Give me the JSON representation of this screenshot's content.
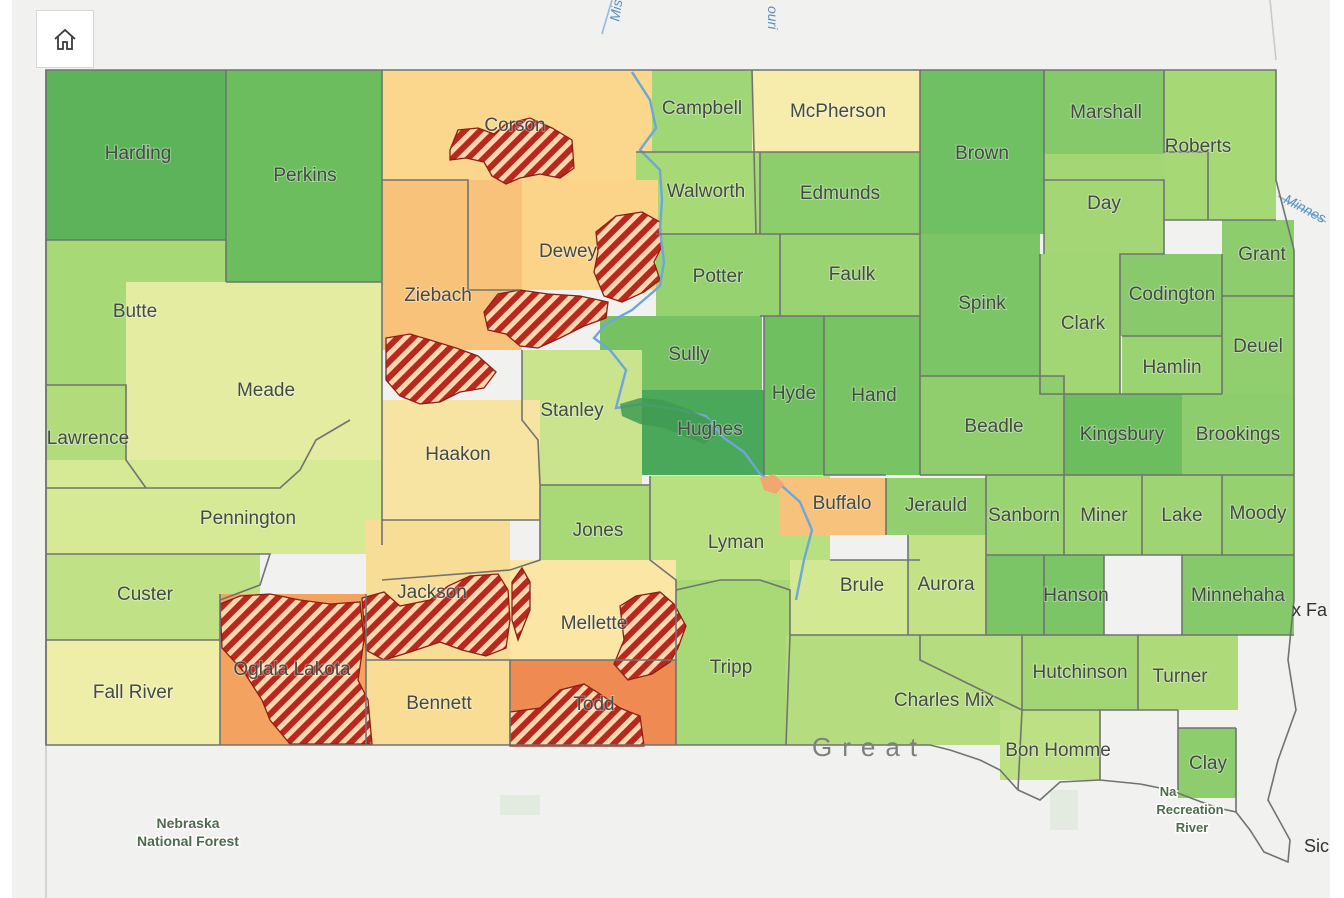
{
  "toolbar": {
    "home_icon": "home-icon"
  },
  "colors": {
    "background": "#f1f2ef",
    "county_border": "#6f7470",
    "reservation_hatch": "#b8281c",
    "river": "#6ea6d9"
  },
  "river_labels": [
    {
      "text": "Mis",
      "key": "missouri_a"
    },
    {
      "text": "ouri",
      "key": "missouri_b"
    },
    {
      "text": "Minnes",
      "key": "minnesota"
    }
  ],
  "basemap_labels": [
    {
      "key": "nebraska_forest_1",
      "text": "Nebraska"
    },
    {
      "key": "nebraska_forest_2",
      "text": "National Forest"
    },
    {
      "key": "recreation_1",
      "text": "Na"
    },
    {
      "key": "recreation_2",
      "text": "Recreation"
    },
    {
      "key": "recreation_3",
      "text": "River"
    },
    {
      "key": "sioux_falls",
      "text": "x Fa"
    },
    {
      "key": "sioux_city",
      "text": "Sic"
    },
    {
      "key": "great_sioux",
      "text": "Great"
    }
  ],
  "counties": [
    {
      "name": "Harding",
      "color": "#5cb35a"
    },
    {
      "name": "Perkins",
      "color": "#6cbd5e"
    },
    {
      "name": "Corson",
      "color": "#fad78d"
    },
    {
      "name": "Campbell",
      "color": "#9fd676"
    },
    {
      "name": "McPherson",
      "color": "#f6ecab"
    },
    {
      "name": "Brown",
      "color": "#6fc062"
    },
    {
      "name": "Marshall",
      "color": "#86c96b"
    },
    {
      "name": "Roberts",
      "color": "#a6d876"
    },
    {
      "name": "Walworth",
      "color": "#a8d977"
    },
    {
      "name": "Edmunds",
      "color": "#8ccd6c"
    },
    {
      "name": "Day",
      "color": "#a4d675"
    },
    {
      "name": "Butte",
      "color": "#a8d977"
    },
    {
      "name": "Dewey",
      "color": "#fbd48a"
    },
    {
      "name": "Potter",
      "color": "#97d270"
    },
    {
      "name": "Faulk",
      "color": "#9ad372"
    },
    {
      "name": "Spink",
      "color": "#7cc566"
    },
    {
      "name": "Clark",
      "color": "#a2d574"
    },
    {
      "name": "Codington",
      "color": "#88ca6b"
    },
    {
      "name": "Grant",
      "color": "#8ecd6d"
    },
    {
      "name": "Ziebach",
      "color": "#f9c27b"
    },
    {
      "name": "Meade",
      "color": "#e3eca0"
    },
    {
      "name": "Sully",
      "color": "#76c263"
    },
    {
      "name": "Hyde",
      "color": "#6fbf60"
    },
    {
      "name": "Hand",
      "color": "#78c364"
    },
    {
      "name": "Hamlin",
      "color": "#9ad372"
    },
    {
      "name": "Deuel",
      "color": "#90ce6e"
    },
    {
      "name": "Lawrence",
      "color": "#b2dc7c"
    },
    {
      "name": "Stanley",
      "color": "#c9e48c"
    },
    {
      "name": "Hughes",
      "color": "#4aa85a"
    },
    {
      "name": "Beadle",
      "color": "#8fcd6d"
    },
    {
      "name": "Kingsbury",
      "color": "#6cbd5e"
    },
    {
      "name": "Brookings",
      "color": "#8ecd6d"
    },
    {
      "name": "Haakon",
      "color": "#f8e4a2"
    },
    {
      "name": "Pennington",
      "color": "#d6e994"
    },
    {
      "name": "Jones",
      "color": "#a9d977"
    },
    {
      "name": "Lyman",
      "color": "#b8df80"
    },
    {
      "name": "Buffalo",
      "color": "#f7c27c"
    },
    {
      "name": "Jerauld",
      "color": "#93cf6f"
    },
    {
      "name": "Sanborn",
      "color": "#9ad372"
    },
    {
      "name": "Miner",
      "color": "#a0d574"
    },
    {
      "name": "Lake",
      "color": "#9ed473"
    },
    {
      "name": "Moody",
      "color": "#96d170"
    },
    {
      "name": "Custer",
      "color": "#c0e186"
    },
    {
      "name": "Jackson",
      "color": "#f7dd96"
    },
    {
      "name": "Mellette",
      "color": "#fbe6a6"
    },
    {
      "name": "Brule",
      "color": "#d2e892"
    },
    {
      "name": "Aurora",
      "color": "#c3e288"
    },
    {
      "name": "Hanson",
      "color": "#7cc566"
    },
    {
      "name": "Minnehaha",
      "color": "#86c96b"
    },
    {
      "name": "Fall River",
      "color": "#eeeea8"
    },
    {
      "name": "Oglala Lakota",
      "color": "#f3a260"
    },
    {
      "name": "Bennett",
      "color": "#f9dd94"
    },
    {
      "name": "Todd",
      "color": "#ee8a52"
    },
    {
      "name": "Tripp",
      "color": "#a9d977"
    },
    {
      "name": "Charles Mix",
      "color": "#b5dd7f"
    },
    {
      "name": "Hutchinson",
      "color": "#a2d574"
    },
    {
      "name": "Turner",
      "color": "#aeda7a"
    },
    {
      "name": "Bon Homme",
      "color": "#bde084"
    },
    {
      "name": "Clay",
      "color": "#8ecd6d"
    }
  ]
}
